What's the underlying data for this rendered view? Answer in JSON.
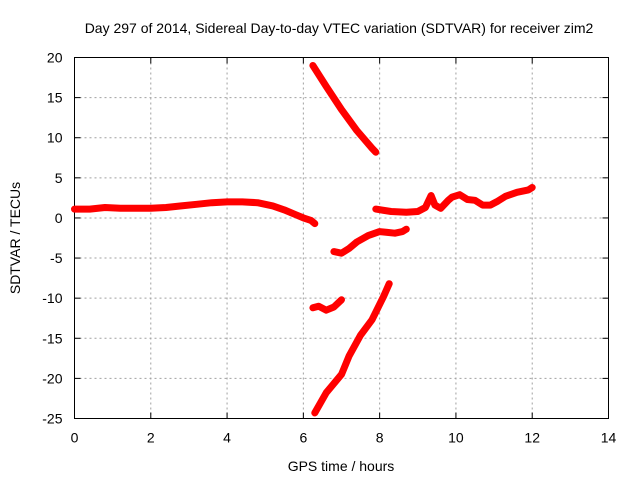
{
  "chart_data": {
    "type": "line",
    "title": "Day 297 of 2014, Sidereal Day-to-day VTEC variation (SDTVAR) for receiver zim2",
    "xlabel": "GPS time / hours",
    "ylabel": "SDTVAR / TECUs",
    "xlim": [
      0,
      14
    ],
    "ylim": [
      -25,
      20
    ],
    "xticks": [
      0,
      2,
      4,
      6,
      8,
      10,
      12,
      14
    ],
    "yticks": [
      -25,
      -20,
      -15,
      -10,
      -5,
      0,
      5,
      10,
      15,
      20
    ],
    "grid": true,
    "legend": "none",
    "color": "#ff0000",
    "series": [
      {
        "values": [
          [
            0.0,
            1.1
          ],
          [
            0.4,
            1.1
          ],
          [
            0.8,
            1.3
          ],
          [
            1.2,
            1.2
          ],
          [
            1.6,
            1.2
          ],
          [
            2.0,
            1.2
          ],
          [
            2.4,
            1.3
          ],
          [
            2.8,
            1.5
          ],
          [
            3.2,
            1.7
          ],
          [
            3.6,
            1.9
          ],
          [
            4.0,
            2.0
          ],
          [
            4.4,
            2.0
          ],
          [
            4.8,
            1.9
          ],
          [
            5.2,
            1.5
          ],
          [
            5.5,
            1.0
          ],
          [
            5.8,
            0.4
          ],
          [
            6.0,
            0.0
          ],
          [
            6.2,
            -0.3
          ],
          [
            6.3,
            -0.7
          ]
        ]
      },
      {
        "values": [
          [
            6.25,
            19.0
          ],
          [
            6.6,
            16.4
          ],
          [
            7.0,
            13.5
          ],
          [
            7.4,
            10.9
          ],
          [
            7.8,
            8.7
          ],
          [
            7.9,
            8.2
          ]
        ]
      },
      {
        "values": [
          [
            6.8,
            -4.2
          ],
          [
            7.0,
            -4.4
          ],
          [
            7.2,
            -3.8
          ],
          [
            7.4,
            -3.0
          ],
          [
            7.7,
            -2.2
          ],
          [
            8.0,
            -1.7
          ],
          [
            8.2,
            -1.8
          ],
          [
            8.4,
            -1.9
          ],
          [
            8.6,
            -1.7
          ],
          [
            8.7,
            -1.4
          ]
        ]
      },
      {
        "values": [
          [
            7.9,
            1.1
          ],
          [
            8.3,
            0.8
          ],
          [
            8.7,
            0.7
          ],
          [
            9.0,
            0.8
          ],
          [
            9.2,
            1.3
          ],
          [
            9.35,
            2.8
          ],
          [
            9.45,
            1.6
          ],
          [
            9.6,
            1.2
          ],
          [
            9.8,
            2.2
          ],
          [
            9.9,
            2.6
          ],
          [
            10.1,
            2.9
          ],
          [
            10.3,
            2.3
          ],
          [
            10.5,
            2.2
          ],
          [
            10.7,
            1.6
          ],
          [
            10.9,
            1.6
          ],
          [
            11.1,
            2.1
          ],
          [
            11.3,
            2.7
          ],
          [
            11.6,
            3.2
          ],
          [
            11.9,
            3.5
          ],
          [
            12.0,
            3.8
          ]
        ]
      },
      {
        "values": [
          [
            6.25,
            -11.2
          ],
          [
            6.4,
            -11.0
          ],
          [
            6.6,
            -11.5
          ],
          [
            6.8,
            -11.1
          ],
          [
            7.0,
            -10.2
          ]
        ]
      },
      {
        "values": [
          [
            6.3,
            -24.3
          ],
          [
            6.6,
            -21.8
          ],
          [
            7.0,
            -19.5
          ],
          [
            7.2,
            -17.2
          ],
          [
            7.5,
            -14.6
          ],
          [
            7.8,
            -12.7
          ],
          [
            8.1,
            -9.8
          ],
          [
            8.25,
            -8.2
          ]
        ]
      }
    ]
  }
}
